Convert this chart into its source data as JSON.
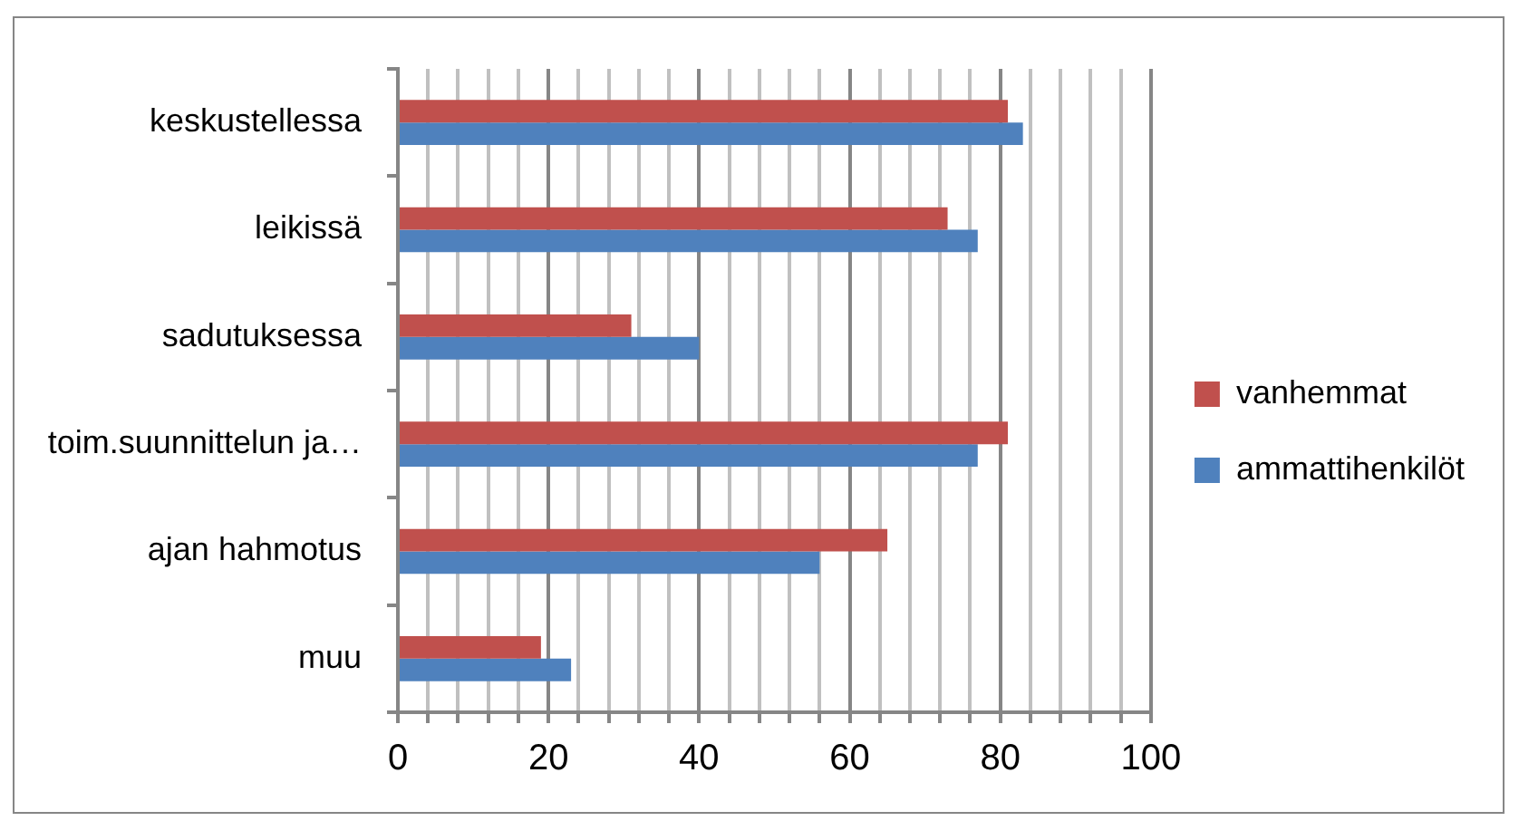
{
  "chart_data": {
    "type": "bar",
    "orientation": "horizontal",
    "categories": [
      "keskustellessa",
      "leikissä",
      "sadutuksessa",
      "toim.suunnittelun ja…",
      "ajan hahmotus",
      "muu"
    ],
    "series": [
      {
        "name": "vanhemmat",
        "color": "#c0504d",
        "values": [
          81,
          73,
          31,
          81,
          65,
          19
        ]
      },
      {
        "name": "ammattihenkilöt",
        "color": "#4f81bd",
        "values": [
          83,
          77,
          40,
          77,
          56,
          23
        ]
      }
    ],
    "xlim": [
      0,
      100
    ],
    "xticks": [
      0,
      {
        "value": 4,
        "label": null
      },
      {
        "value": 8,
        "label": null
      },
      {
        "value": 12,
        "label": null
      },
      {
        "value": 16,
        "label": null
      },
      20,
      {
        "value": 24,
        "label": null
      },
      {
        "value": 28,
        "label": null
      },
      {
        "value": 32,
        "label": null
      },
      {
        "value": 36,
        "label": null
      },
      40,
      {
        "value": 44,
        "label": null
      },
      {
        "value": 48,
        "label": null
      },
      {
        "value": 52,
        "label": null
      },
      {
        "value": 56,
        "label": null
      },
      60,
      {
        "value": 64,
        "label": null
      },
      {
        "value": 68,
        "label": null
      },
      {
        "value": 72,
        "label": null
      },
      {
        "value": 76,
        "label": null
      },
      80,
      {
        "value": 84,
        "label": null
      },
      {
        "value": 88,
        "label": null
      },
      {
        "value": 92,
        "label": null
      },
      {
        "value": 96,
        "label": null
      },
      100
    ],
    "grid": "x",
    "legend": "right"
  }
}
